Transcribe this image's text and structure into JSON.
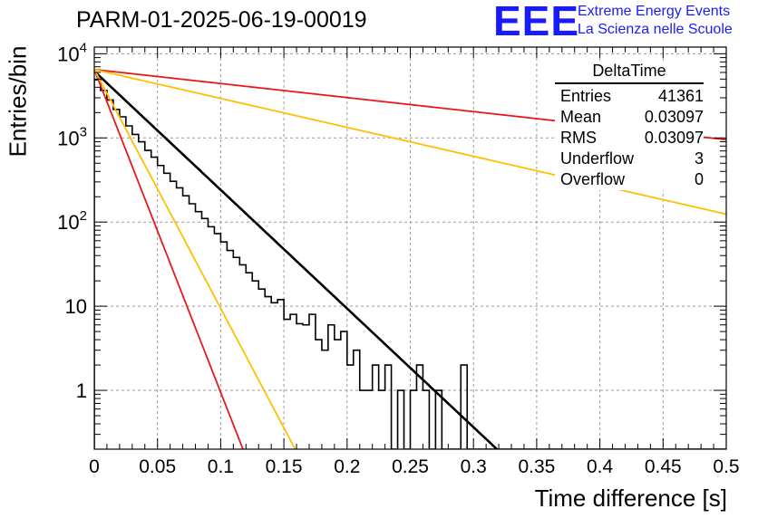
{
  "header": {
    "title": "PARM-01-2025-06-19-00019",
    "logo_text": "EEE",
    "logo_line1": "Extreme Energy Events",
    "logo_line2": "La Scienza nelle Scuole"
  },
  "stats": {
    "name": "DeltaTime",
    "rows": [
      {
        "label": "Entries",
        "value": "41361"
      },
      {
        "label": "Mean",
        "value": "0.03097"
      },
      {
        "label": "RMS",
        "value": "0.03097"
      },
      {
        "label": "Underflow",
        "value": "3"
      },
      {
        "label": "Overflow",
        "value": "0"
      }
    ]
  },
  "chart_data": {
    "type": "histogram",
    "title": "PARM-01-2025-06-19-00019",
    "xlabel": "Time difference [s]",
    "ylabel": "Entries/bin",
    "xlim": [
      0,
      0.5
    ],
    "ylim": [
      0.2,
      12000
    ],
    "yscale": "log",
    "grid": true,
    "x_ticks": [
      "0",
      "0.05",
      "0.1",
      "0.15",
      "0.2",
      "0.25",
      "0.3",
      "0.35",
      "0.4",
      "0.45",
      "0.5"
    ],
    "y_ticks": [
      "1",
      "10",
      "10^2",
      "10^3",
      "10^4"
    ],
    "histogram": {
      "bin_width": 0.005,
      "counts": [
        4900,
        3670,
        2820,
        2180,
        1780,
        1390,
        1100,
        900,
        710,
        590,
        470,
        380,
        305,
        255,
        205,
        165,
        133,
        110,
        88,
        73,
        58,
        46,
        38,
        31,
        25,
        20,
        16,
        13,
        11,
        12,
        7,
        8,
        6.2,
        6,
        8,
        4,
        3,
        6,
        4,
        5,
        2,
        3,
        1,
        1,
        2,
        1,
        2,
        0,
        1,
        0,
        1,
        2,
        1,
        0,
        1,
        0,
        0,
        0,
        2,
        0,
        0,
        0,
        0,
        0,
        0,
        0,
        0,
        0,
        0,
        0,
        0,
        0,
        0,
        0,
        0,
        0,
        0,
        0,
        0,
        0,
        0,
        0,
        0,
        0,
        0,
        0,
        0,
        0,
        0,
        0,
        0,
        0,
        0,
        0,
        0,
        0,
        0,
        0,
        0,
        0
      ]
    },
    "lines": [
      {
        "color": "#000000",
        "y0": 6200,
        "tau": 0.0308
      },
      {
        "color": "#e41a1c",
        "y0": 6500,
        "tau": 0.01132
      },
      {
        "color": "#ffbf00",
        "y0": 6500,
        "tau": 0.0153
      },
      {
        "color": "#e41a1c",
        "y0": 6500,
        "tau": 0.2603
      },
      {
        "color": "#ffbf00",
        "y0": 6500,
        "tau": 0.1263
      }
    ]
  }
}
